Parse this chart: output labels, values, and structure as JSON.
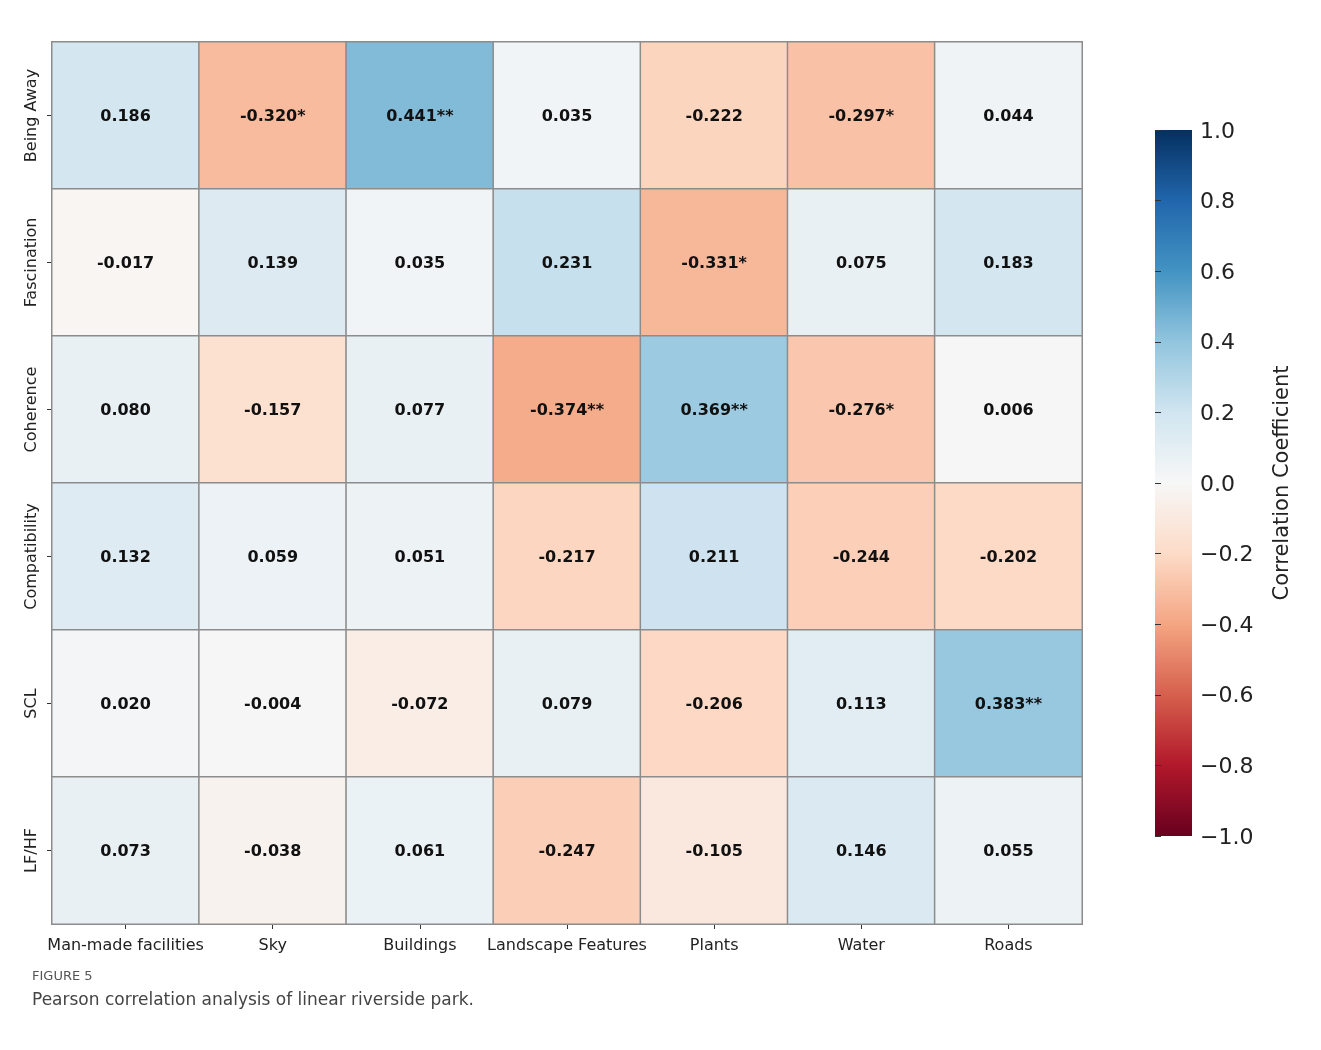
{
  "chart_data": {
    "type": "heatmap",
    "categories": [
      "Man-made facilities",
      "Sky",
      "Buildings",
      "Landscape Features",
      "Plants",
      "Water",
      "Roads"
    ],
    "y_categories": [
      "Being Away",
      "Fascination",
      "Coherence",
      "Compatibility",
      "SCL",
      "LF/HF"
    ],
    "cells": [
      [
        0.186,
        -0.32,
        0.441,
        0.035,
        -0.222,
        -0.297,
        0.044
      ],
      [
        -0.017,
        0.139,
        0.035,
        0.231,
        -0.331,
        0.075,
        0.183
      ],
      [
        0.08,
        -0.157,
        0.077,
        -0.374,
        0.369,
        -0.276,
        0.006
      ],
      [
        0.132,
        0.059,
        0.051,
        -0.217,
        0.211,
        -0.244,
        -0.202
      ],
      [
        0.02,
        -0.004,
        -0.072,
        0.079,
        -0.206,
        0.113,
        0.383
      ],
      [
        0.073,
        -0.038,
        0.061,
        -0.247,
        -0.105,
        0.146,
        0.055
      ]
    ],
    "cell_labels": [
      [
        "0.186",
        "-0.320*",
        "0.441**",
        "0.035",
        "-0.222",
        "-0.297*",
        "0.044"
      ],
      [
        "-0.017",
        "0.139",
        "0.035",
        "0.231",
        "-0.331*",
        "0.075",
        "0.183"
      ],
      [
        "0.080",
        "-0.157",
        "0.077",
        "-0.374**",
        "0.369**",
        "-0.276*",
        "0.006"
      ],
      [
        "0.132",
        "0.059",
        "0.051",
        "-0.217",
        "0.211",
        "-0.244",
        "-0.202"
      ],
      [
        "0.020",
        "-0.004",
        "-0.072",
        "0.079",
        "-0.206",
        "0.113",
        "0.383**"
      ],
      [
        "0.073",
        "-0.038",
        "0.061",
        "-0.247",
        "-0.105",
        "0.146",
        "0.055"
      ]
    ],
    "clim": [
      -1,
      1
    ],
    "cticks": [
      {
        "value": 1,
        "label": "1.0"
      },
      {
        "value": 0.8,
        "label": "0.8"
      },
      {
        "value": 0.6,
        "label": "0.6"
      },
      {
        "value": 0.4,
        "label": "0.4"
      },
      {
        "value": 0.2,
        "label": "0.2"
      },
      {
        "value": 0,
        "label": "0.0"
      },
      {
        "value": -0.2,
        "label": "−0.2"
      },
      {
        "value": -0.4,
        "label": "−0.4"
      },
      {
        "value": -0.6,
        "label": "−0.6"
      },
      {
        "value": -0.8,
        "label": "−0.8"
      },
      {
        "value": -1,
        "label": "−1.0"
      }
    ],
    "clabel": "Correlation Coefficient",
    "annotations": [
      "FIGURE 5",
      "Pearson correlation analysis of linear riverside park."
    ]
  }
}
